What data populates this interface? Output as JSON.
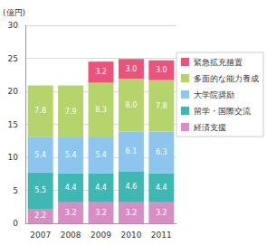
{
  "chart_data": {
    "type": "bar",
    "stacked": true,
    "data_labels": true,
    "grid": true,
    "legend": "right",
    "ylabel": "(億円)",
    "categories": [
      "2007",
      "2008",
      "2009",
      "2010",
      "2011"
    ],
    "ylim": [
      0,
      30
    ],
    "yticks": [
      0,
      5,
      10,
      15,
      20,
      25,
      30
    ],
    "series": [
      {
        "name": "経済支援",
        "color": "#d78fc3",
        "values": [
          2.2,
          3.2,
          3.2,
          3.2,
          3.2
        ],
        "value_labels": [
          "2.2",
          "3.2",
          "3.2",
          "3.2",
          "3.2"
        ]
      },
      {
        "name": "留学・国際交流",
        "color": "#3fb8b3",
        "values": [
          5.5,
          4.4,
          4.4,
          4.6,
          4.4
        ],
        "value_labels": [
          "5.5",
          "4.4",
          "4.4",
          "4.6",
          "4.4"
        ]
      },
      {
        "name": "大学院奨励",
        "color": "#8cc6ee",
        "values": [
          5.4,
          5.4,
          5.4,
          6.1,
          6.3
        ],
        "value_labels": [
          "5.4",
          "5.4",
          "5.4",
          "6.1",
          "6.3"
        ]
      },
      {
        "name": "多面的な能力養成",
        "color": "#b6d46c",
        "values": [
          7.8,
          7.9,
          8.3,
          8.0,
          7.8
        ],
        "value_labels": [
          "7.8",
          "7.9",
          "8.3",
          "8.0",
          "7.8"
        ]
      },
      {
        "name": "緊急拡充措置",
        "color": "#e9537c",
        "values": [
          null,
          null,
          3.2,
          3.0,
          3.0
        ],
        "value_labels": [
          null,
          null,
          "3.2",
          "3.0",
          "3.0"
        ]
      }
    ]
  }
}
